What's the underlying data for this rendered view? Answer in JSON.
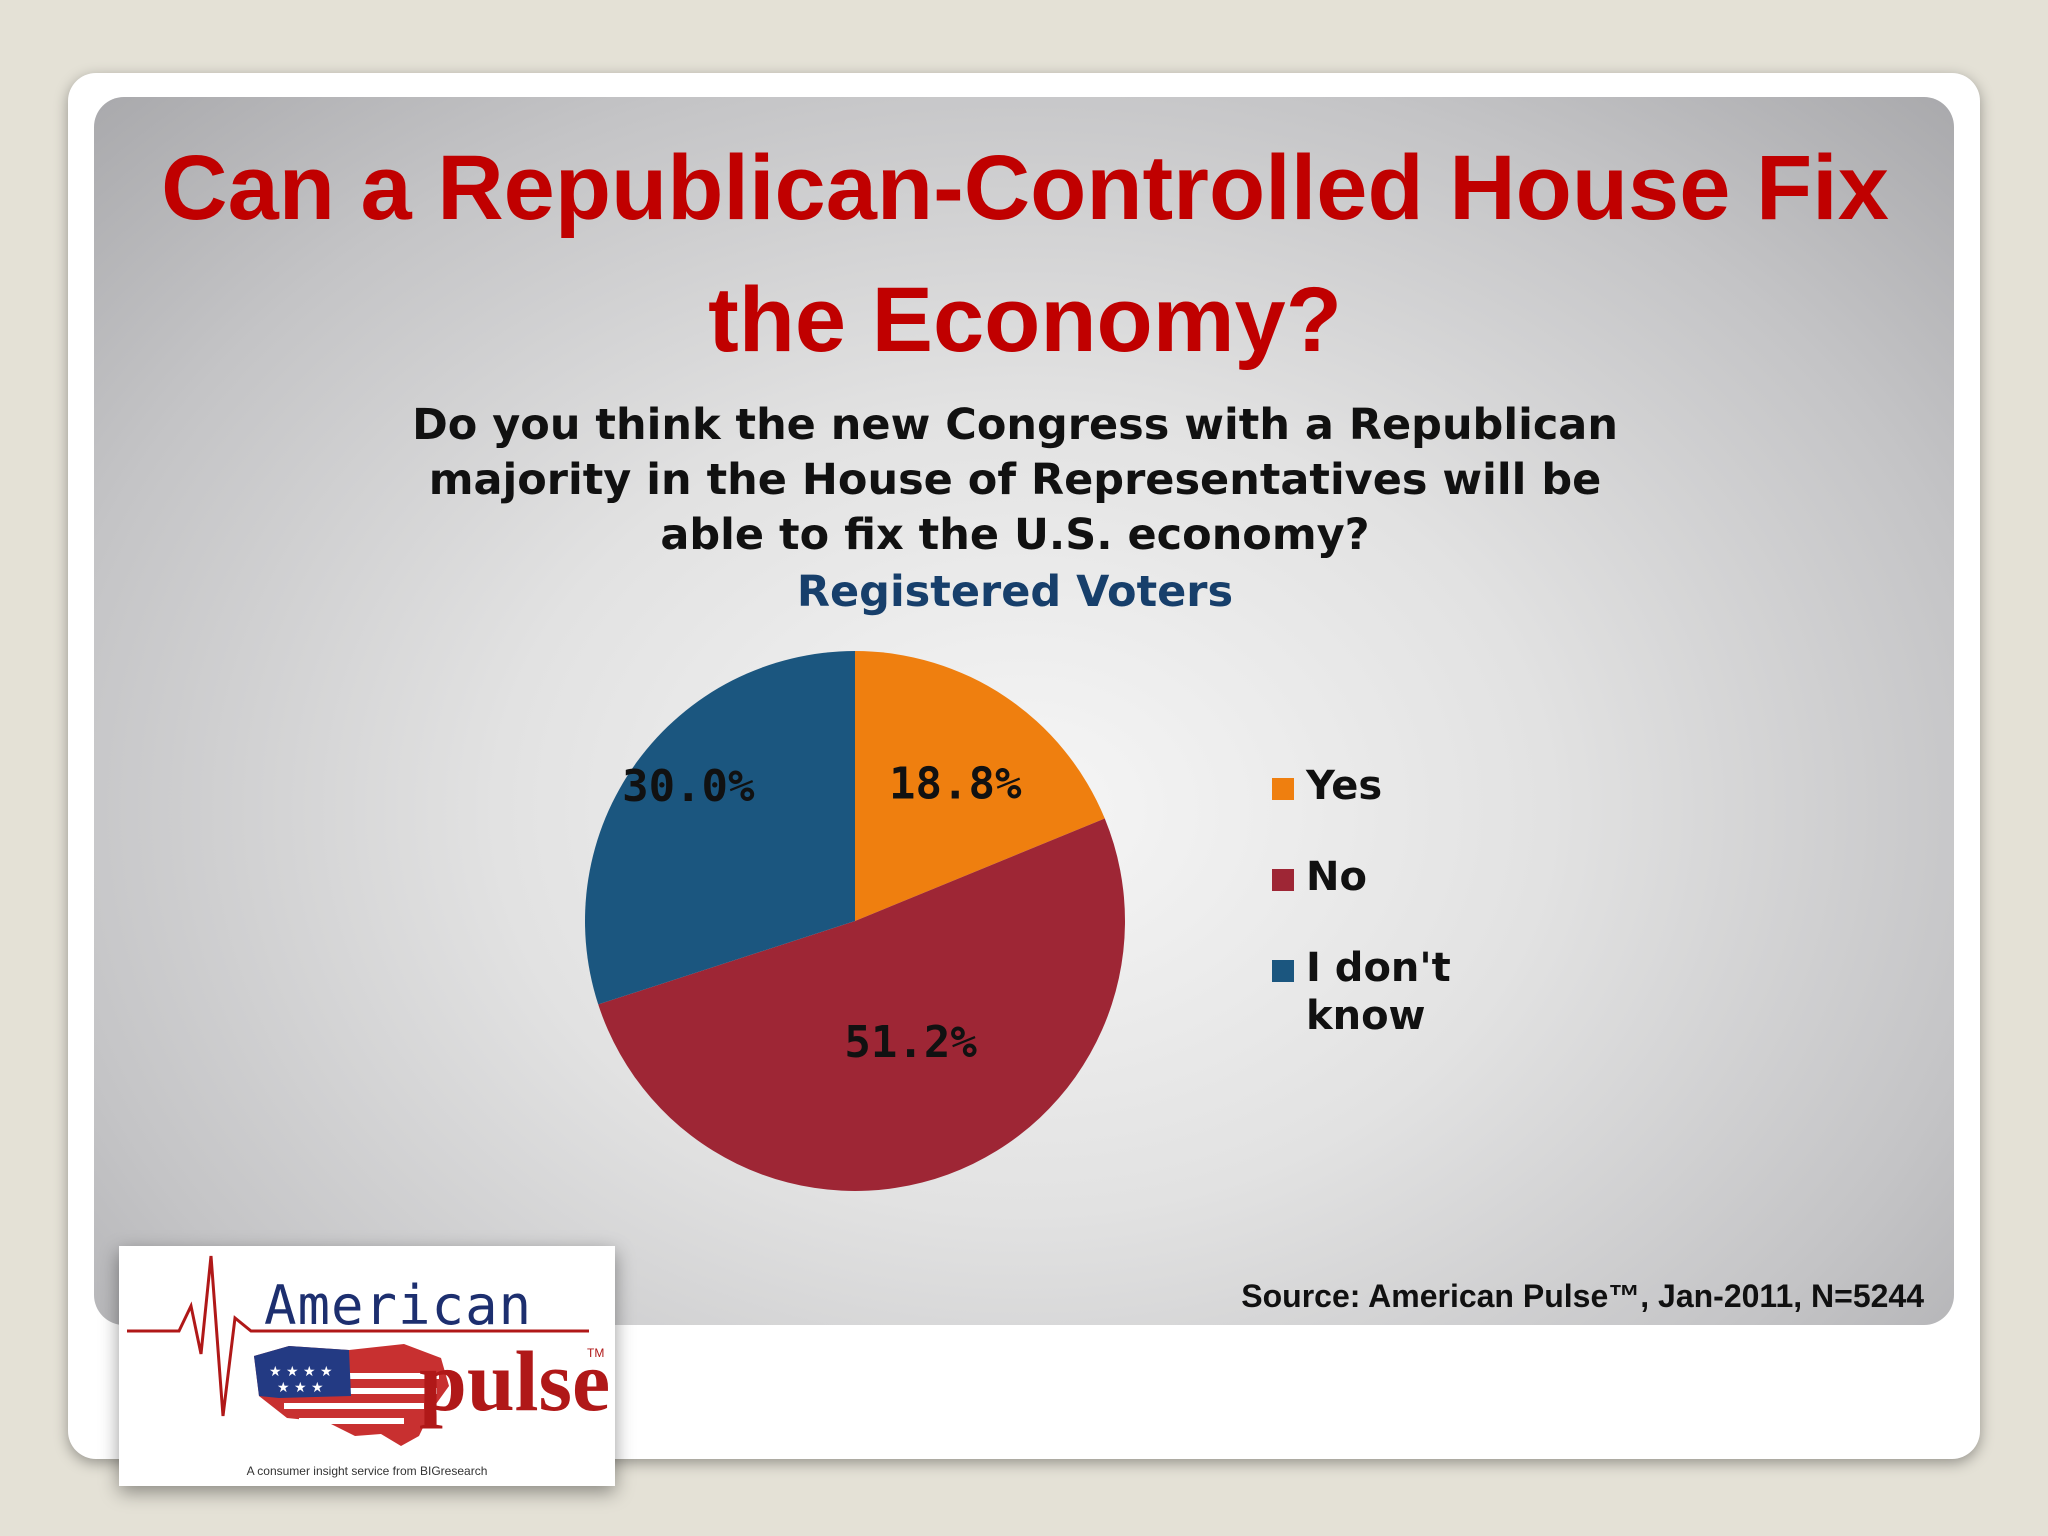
{
  "slide": {
    "title_lines": [
      "Can a Republican-Controlled House Fix",
      "the Economy?"
    ],
    "question_lines": [
      "Do you think the new Congress with a Republican",
      "majority in the House of Representatives will be",
      "able to fix the U.S. economy?"
    ],
    "subtitle": "Registered Voters",
    "source": "Source: American Pulse™, Jan-2011, N=5244"
  },
  "logo": {
    "word_american": "American",
    "word_pulse": "pulse",
    "tm": "TM",
    "tagline": "A consumer insight service from BIGresearch"
  },
  "chart_data": {
    "type": "pie",
    "title": "Do you think the new Congress with a Republican majority in the House of Representatives will be able to fix the U.S. economy?",
    "subtitle": "Registered Voters",
    "categories": [
      "Yes",
      "No",
      "I don't know"
    ],
    "values": [
      18.8,
      51.2,
      30.0
    ],
    "value_labels": [
      "18.8%",
      "51.2%",
      "30.0%"
    ],
    "legend_labels": [
      [
        "Yes"
      ],
      [
        "No"
      ],
      [
        "I don't",
        "know"
      ]
    ],
    "colors": [
      "#ef7f0f",
      "#9e2635",
      "#1b567f"
    ],
    "legend_position": "right",
    "start_angle_deg": 0,
    "direction": "clockwise"
  }
}
